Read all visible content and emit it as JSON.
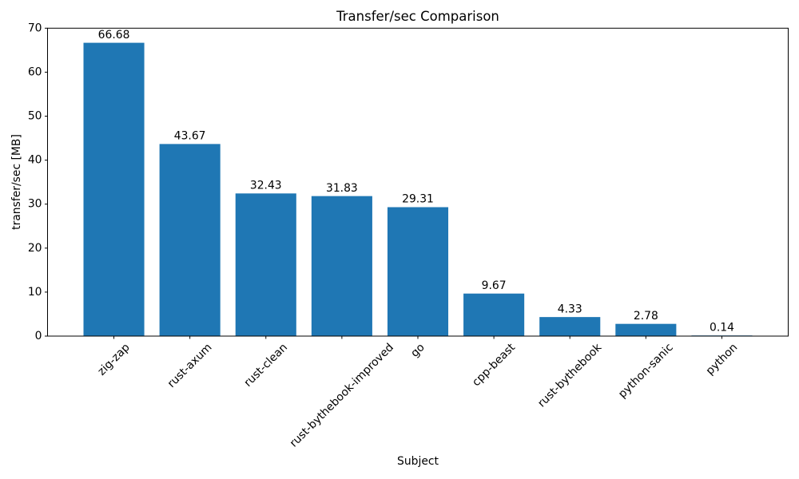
{
  "chart_data": {
    "type": "bar",
    "title": "Transfer/sec Comparison",
    "xlabel": "Subject",
    "ylabel": "transfer/sec [MB]",
    "categories": [
      "zig-zap",
      "rust-axum",
      "rust-clean",
      "rust-bythebook-improved",
      "go",
      "cpp-beast",
      "rust-bythebook",
      "python-sanic",
      "python"
    ],
    "values": [
      66.68,
      43.67,
      32.43,
      31.83,
      29.31,
      9.67,
      4.33,
      2.78,
      0.14
    ],
    "value_labels": [
      "66.68",
      "43.67",
      "32.43",
      "31.83",
      "29.31",
      "9.67",
      "4.33",
      "2.78",
      "0.14"
    ],
    "ylim": [
      0,
      70
    ],
    "yticks": [
      0,
      10,
      20,
      30,
      40,
      50,
      60,
      70
    ],
    "ytick_labels": [
      "0",
      "10",
      "20",
      "30",
      "40",
      "50",
      "60",
      "70"
    ],
    "x_tick_rotation_deg": 45,
    "grid": false,
    "bar_color": "#1f77b4",
    "text_color": "#000000",
    "spine_color": "#000000"
  }
}
